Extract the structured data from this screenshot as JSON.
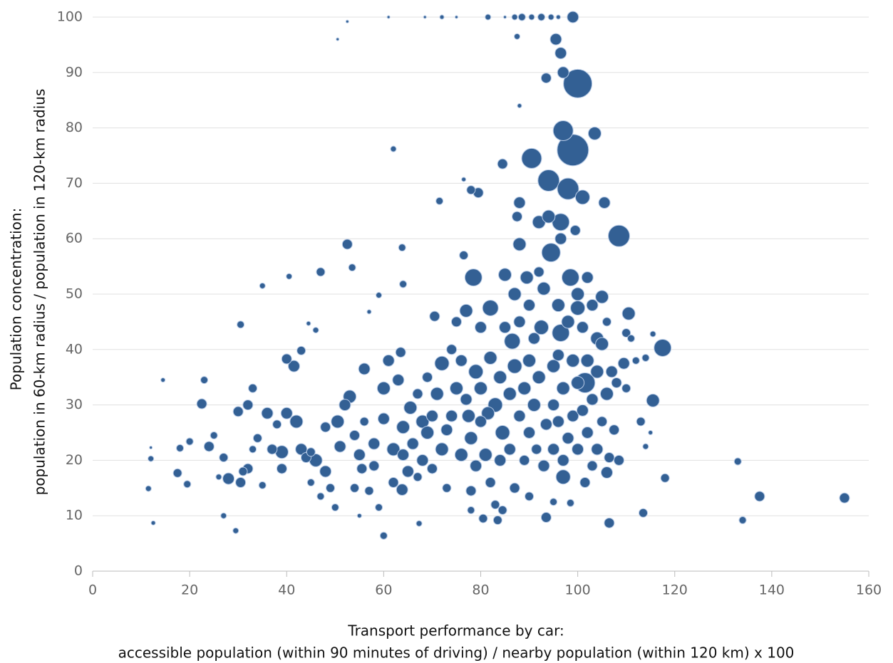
{
  "chart_data": {
    "type": "scatter",
    "x_label": [
      "Transport performance by car:",
      "accessible population (within 90 minutes of driving) / nearby population (within 120 km) x 100"
    ],
    "y_label": [
      "Population concentration:",
      "population in 60-km radius / population in 120-km radius"
    ],
    "color": "#336094",
    "grid": true,
    "xlim": [
      0,
      160
    ],
    "xticks": [
      0,
      20,
      40,
      60,
      80,
      100,
      120,
      140,
      160
    ],
    "ylim": [
      0,
      100
    ],
    "yticks": [
      0,
      10,
      20,
      30,
      40,
      50,
      60,
      70,
      80,
      90,
      100
    ],
    "x": [
      100,
      99,
      97,
      90.5,
      94,
      98,
      108.5,
      117.5,
      98.5,
      94.5,
      96.5,
      95.5,
      96.5,
      99,
      101,
      103.5,
      105.5,
      100,
      101.5,
      96.5,
      86.5,
      78.5,
      82,
      92.5,
      110.5,
      115.5,
      106.5,
      137.5,
      155,
      133,
      134,
      118,
      113.5,
      113,
      93.5,
      84.5,
      88,
      104,
      109.5,
      108.5,
      106,
      97,
      93.5,
      81.5,
      84.5,
      63.8,
      77.5,
      68,
      56,
      52.5,
      47,
      53.5,
      63.8,
      59,
      62,
      71.5,
      76.5,
      41.5,
      40,
      43,
      33,
      32,
      22.5,
      23,
      14.5,
      12,
      12,
      11.5,
      12.5,
      17.5,
      18,
      19.5,
      20,
      24,
      25,
      26,
      27,
      27,
      28,
      29.5,
      30,
      30.5,
      31,
      32,
      33,
      34,
      35,
      35,
      36,
      37,
      38,
      39,
      39,
      40,
      42,
      43,
      44,
      45,
      45,
      46,
      47,
      48,
      48,
      49,
      50,
      50.5,
      51,
      52,
      53,
      54,
      54,
      55,
      55.5,
      56,
      57,
      58,
      58,
      59,
      60,
      60,
      60,
      61,
      62,
      62,
      63,
      63.5,
      64,
      64,
      65,
      65.5,
      66,
      67,
      67,
      67.3,
      68,
      69,
      69,
      70,
      70,
      70.5,
      71,
      72,
      72,
      73,
      73,
      74,
      74,
      75,
      75,
      76,
      76,
      77,
      77,
      78,
      78,
      78,
      79,
      79,
      80,
      80,
      80,
      80.5,
      81,
      82,
      82,
      83,
      83,
      83.5,
      84,
      84,
      84.5,
      85,
      85,
      86,
      86,
      87,
      87,
      87,
      87.5,
      88,
      88,
      88,
      89,
      89,
      89.5,
      90,
      90,
      90,
      90,
      91,
      91,
      91.5,
      92,
      92,
      92,
      93,
      93,
      93.5,
      94,
      95,
      95,
      95,
      95,
      96,
      96,
      96,
      96.5,
      97,
      97,
      97,
      98,
      98,
      98.5,
      99,
      99,
      99.5,
      100,
      100,
      100,
      101,
      101,
      101.5,
      102,
      102,
      102,
      103,
      103,
      103,
      104,
      104,
      105,
      105,
      105,
      106,
      106,
      106.5,
      107,
      107.5,
      108,
      110,
      110,
      111,
      112,
      114,
      114,
      115,
      115.5,
      88,
      87.5,
      50.5,
      52.5,
      61,
      68.5,
      72,
      75,
      81.5,
      85,
      87,
      88.5,
      90.5,
      92.5,
      94.5,
      96,
      78,
      79.5,
      76.5,
      30.5,
      40.5,
      46,
      44.5,
      57,
      64,
      55
    ],
    "values": [
      88,
      76,
      79.5,
      74.5,
      70.5,
      69,
      60.5,
      40.3,
      53,
      57.5,
      63,
      96,
      93.5,
      100,
      67.5,
      79,
      66.5,
      47.5,
      34,
      43,
      41.5,
      53,
      47.5,
      44,
      46.5,
      30.8,
      8.7,
      13.5,
      13.2,
      19.8,
      9.2,
      16.8,
      10.5,
      27,
      9.7,
      73.5,
      66.5,
      42,
      37.5,
      20,
      17.8,
      17,
      26.5,
      28.5,
      25,
      14.7,
      28,
      27,
      36.5,
      59,
      54,
      54.8,
      58.4,
      49.8,
      76.2,
      66.8,
      57,
      37,
      38.3,
      39.8,
      33,
      30,
      30.2,
      34.5,
      34.5,
      22.3,
      20.3,
      14.9,
      8.7,
      17.7,
      22.2,
      15.7,
      23.4,
      22.5,
      24.5,
      17,
      20.5,
      10,
      16.7,
      7.3,
      28.8,
      16,
      18,
      18.5,
      22,
      24,
      15.5,
      51.5,
      28.5,
      22,
      26.5,
      21.5,
      18.5,
      28.5,
      27,
      22,
      20.5,
      21.5,
      16,
      20,
      13.5,
      18,
      26,
      15,
      11.5,
      27,
      22.5,
      30,
      31.5,
      24.5,
      15,
      21,
      18.5,
      27,
      14.5,
      23,
      19,
      11.5,
      6.4,
      27.5,
      33,
      38,
      22,
      16,
      34.5,
      39.5,
      26,
      21,
      18,
      29.5,
      23,
      32,
      17,
      8.6,
      20,
      35,
      25,
      28,
      18.5,
      46,
      32,
      37.5,
      22,
      25.5,
      15,
      28,
      40,
      33,
      45,
      21,
      38,
      47,
      31,
      24,
      14.5,
      11,
      36,
      19,
      33,
      44,
      27,
      9.5,
      21,
      38.5,
      16,
      30,
      12,
      9.2,
      35,
      20,
      11,
      53.5,
      44,
      32,
      22,
      50,
      37,
      15,
      64,
      59,
      28,
      45,
      33,
      20,
      53,
      48,
      38,
      25,
      13.5,
      42,
      30,
      22,
      63,
      35,
      54,
      51,
      19,
      89,
      64,
      37,
      30,
      22,
      12.5,
      48,
      39,
      27,
      60,
      33,
      20,
      90,
      45,
      24,
      12.3,
      38,
      28,
      61.5,
      50,
      34,
      22,
      44,
      29,
      16,
      53,
      38,
      25,
      48,
      31,
      19,
      36,
      22,
      49.5,
      41,
      27,
      32,
      45,
      20.5,
      36,
      25.5,
      34,
      33,
      43,
      42,
      38,
      38.5,
      22.5,
      25,
      42.8,
      84,
      96.5,
      96,
      99.2,
      100,
      100,
      100,
      100,
      100,
      100,
      100,
      100,
      100,
      100,
      100,
      100,
      68.8,
      68.3,
      70.7,
      44.5,
      53.2,
      43.5,
      44.7,
      46.8,
      51.8,
      10
    ],
    "sizes": [
      20,
      22,
      14,
      14,
      15,
      15,
      15,
      12,
      12,
      13,
      12,
      8,
      8,
      8,
      10,
      9,
      8,
      10,
      14,
      12,
      11,
      12,
      11,
      10,
      9,
      9,
      7,
      7,
      7,
      5,
      5,
      6,
      6,
      6,
      7,
      7,
      8,
      9,
      8,
      7,
      8,
      10,
      8,
      9,
      10,
      8,
      9,
      9,
      8,
      7,
      6,
      5,
      5,
      4,
      4,
      5,
      6,
      8,
      7,
      6,
      6,
      7,
      7,
      5,
      3,
      2,
      4,
      4,
      3,
      6,
      5,
      5,
      5,
      7,
      5,
      4,
      6,
      4,
      8,
      4,
      7,
      7,
      6,
      7,
      5,
      6,
      5,
      4,
      8,
      7,
      6,
      9,
      7,
      8,
      9,
      8,
      7,
      6,
      5,
      9,
      5,
      8,
      7,
      6,
      5,
      9,
      8,
      8,
      9,
      7,
      6,
      8,
      7,
      6,
      6,
      8,
      7,
      5,
      5,
      8,
      9,
      8,
      9,
      7,
      8,
      7,
      9,
      8,
      8,
      9,
      8,
      7,
      6,
      4,
      8,
      7,
      9,
      8,
      7,
      7,
      9,
      10,
      9,
      8,
      6,
      8,
      7,
      9,
      7,
      9,
      8,
      9,
      8,
      9,
      7,
      5,
      10,
      8,
      9,
      8,
      8,
      6,
      9,
      9,
      7,
      10,
      6,
      6,
      9,
      8,
      6,
      9,
      8,
      9,
      8,
      9,
      10,
      7,
      7,
      9,
      8,
      8,
      9,
      7,
      9,
      8,
      9,
      8,
      6,
      8,
      9,
      7,
      9,
      9,
      7,
      9,
      8,
      7,
      9,
      9,
      8,
      8,
      5,
      9,
      8,
      8,
      8,
      9,
      8,
      8,
      9,
      8,
      5,
      9,
      8,
      7,
      9,
      9,
      8,
      8,
      8,
      7,
      8,
      9,
      8,
      8,
      8,
      7,
      9,
      8,
      9,
      9,
      7,
      9,
      6,
      7,
      8,
      7,
      7,
      6,
      6,
      5,
      5,
      5,
      4,
      3,
      4,
      3,
      4,
      2,
      2,
      2,
      2,
      3,
      2,
      4,
      2,
      4,
      5,
      4,
      5,
      4,
      3,
      6,
      7,
      3,
      5,
      4,
      4,
      3,
      3,
      5,
      3
    ]
  }
}
